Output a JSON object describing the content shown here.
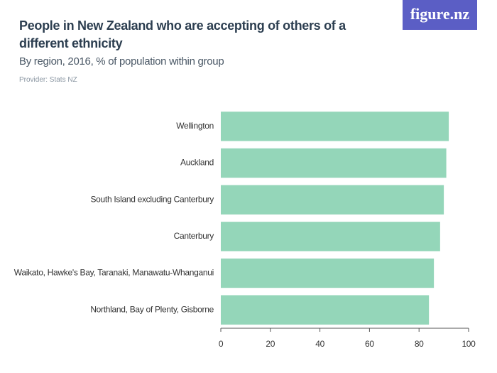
{
  "chart_data": {
    "type": "bar",
    "orientation": "horizontal",
    "title": "People in New Zealand who are accepting of others of a different ethnicity",
    "subtitle": "By region, 2016, % of population within group",
    "provider": "Provider: Stats NZ",
    "logo": "figure.nz",
    "categories": [
      "Wellington",
      "Auckland",
      "South Island excluding Canterbury",
      "Canterbury",
      "Waikato, Hawke's Bay, Taranaki, Manawatu-Whanganui",
      "Northland, Bay of Plenty, Gisborne"
    ],
    "values": [
      92,
      91,
      90,
      88.5,
      86,
      84
    ],
    "color": "#94d6b9",
    "xlim": [
      0,
      100
    ],
    "xticks": [
      0,
      20,
      40,
      60,
      80,
      100
    ],
    "grid": false
  }
}
